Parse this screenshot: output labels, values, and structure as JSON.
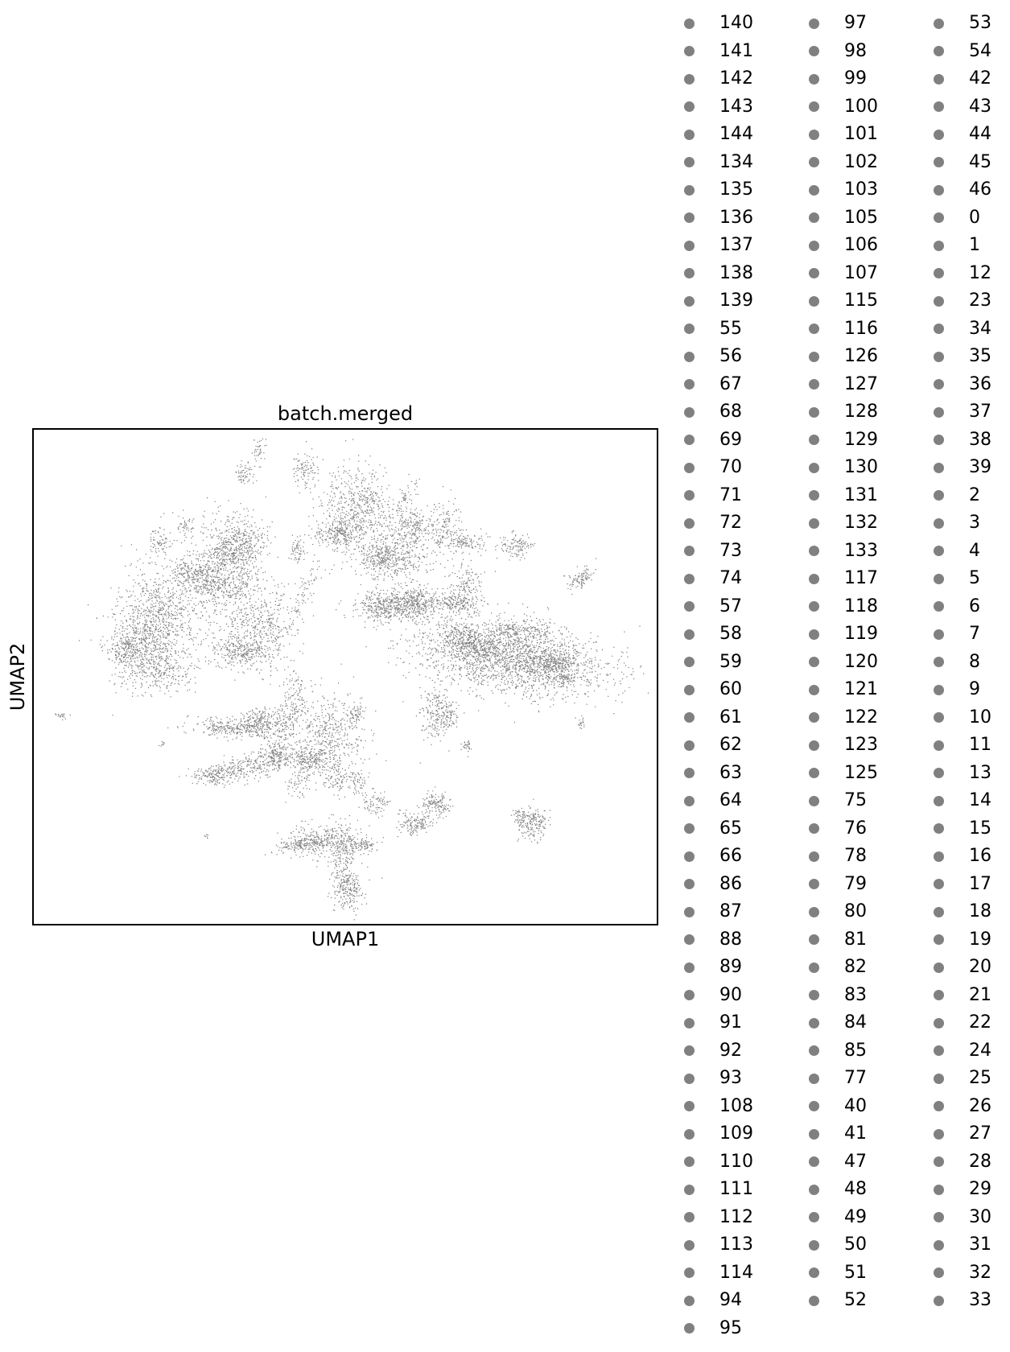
{
  "chart_data": {
    "type": "scatter",
    "title": "batch.merged",
    "xlabel": "UMAP1",
    "ylabel": "UMAP2",
    "xticks": [],
    "yticks": [],
    "grid": false,
    "legend_placement": "right, outside plot, 3 columns",
    "point_color": "#808080",
    "legend_columns": [
      [
        "140",
        "141",
        "142",
        "143",
        "144",
        "134",
        "135",
        "136",
        "137",
        "138",
        "139",
        "55",
        "56",
        "67",
        "68",
        "69",
        "70",
        "71",
        "72",
        "73",
        "74",
        "57",
        "58",
        "59",
        "60",
        "61",
        "62",
        "63",
        "64",
        "65",
        "66",
        "86",
        "87",
        "88",
        "89",
        "90",
        "91",
        "92",
        "93",
        "108",
        "109",
        "110",
        "111",
        "112",
        "113",
        "114",
        "94",
        "95"
      ],
      [
        "97",
        "98",
        "99",
        "100",
        "101",
        "102",
        "103",
        "105",
        "106",
        "107",
        "115",
        "116",
        "126",
        "127",
        "128",
        "129",
        "130",
        "131",
        "132",
        "133",
        "117",
        "118",
        "119",
        "120",
        "121",
        "122",
        "123",
        "125",
        "75",
        "76",
        "78",
        "79",
        "80",
        "81",
        "82",
        "83",
        "84",
        "85",
        "77",
        "40",
        "41",
        "47",
        "48",
        "49",
        "50",
        "51",
        "52"
      ],
      [
        "53",
        "54",
        "42",
        "43",
        "44",
        "45",
        "46",
        "0",
        "1",
        "12",
        "23",
        "34",
        "35",
        "36",
        "37",
        "38",
        "39",
        "2",
        "3",
        "4",
        "5",
        "6",
        "7",
        "8",
        "9",
        "10",
        "11",
        "13",
        "14",
        "15",
        "16",
        "17",
        "18",
        "19",
        "20",
        "21",
        "22",
        "24",
        "25",
        "26",
        "27",
        "28",
        "29",
        "30",
        "31",
        "32",
        "33"
      ]
    ]
  }
}
